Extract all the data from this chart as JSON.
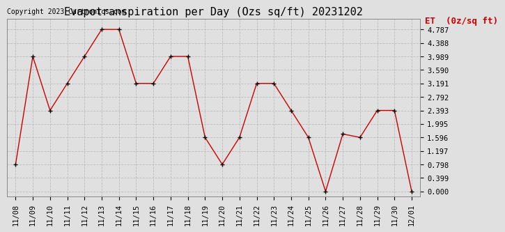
{
  "title": "Evapotranspiration per Day (Ozs sq/ft) 20231202",
  "copyright": "Copyright 2023 Cartronics.com",
  "legend_label": "ET  (0z/sq ft)",
  "dates": [
    "11/08",
    "11/09",
    "11/10",
    "11/11",
    "11/12",
    "11/13",
    "11/14",
    "11/15",
    "11/16",
    "11/17",
    "11/18",
    "11/19",
    "11/20",
    "11/21",
    "11/22",
    "11/23",
    "11/24",
    "11/25",
    "11/26",
    "11/27",
    "11/28",
    "11/29",
    "11/30",
    "12/01"
  ],
  "values": [
    0.798,
    3.989,
    2.393,
    3.191,
    3.989,
    4.787,
    4.787,
    3.191,
    3.191,
    3.989,
    3.989,
    1.596,
    0.798,
    1.596,
    3.191,
    3.191,
    2.393,
    1.596,
    0.0,
    1.697,
    1.596,
    2.393,
    2.393,
    0.0
  ],
  "ylim_min": -0.15,
  "ylim_max": 5.1,
  "yticks": [
    0.0,
    0.399,
    0.798,
    1.197,
    1.596,
    1.995,
    2.393,
    2.792,
    3.191,
    3.59,
    3.989,
    4.388,
    4.787
  ],
  "line_color": "#cc0000",
  "marker_color": "#000000",
  "grid_color": "#bbbbbb",
  "bg_color": "#e0e0e0",
  "title_fontsize": 11,
  "copyright_fontsize": 7,
  "legend_fontsize": 9,
  "tick_fontsize": 7.5
}
